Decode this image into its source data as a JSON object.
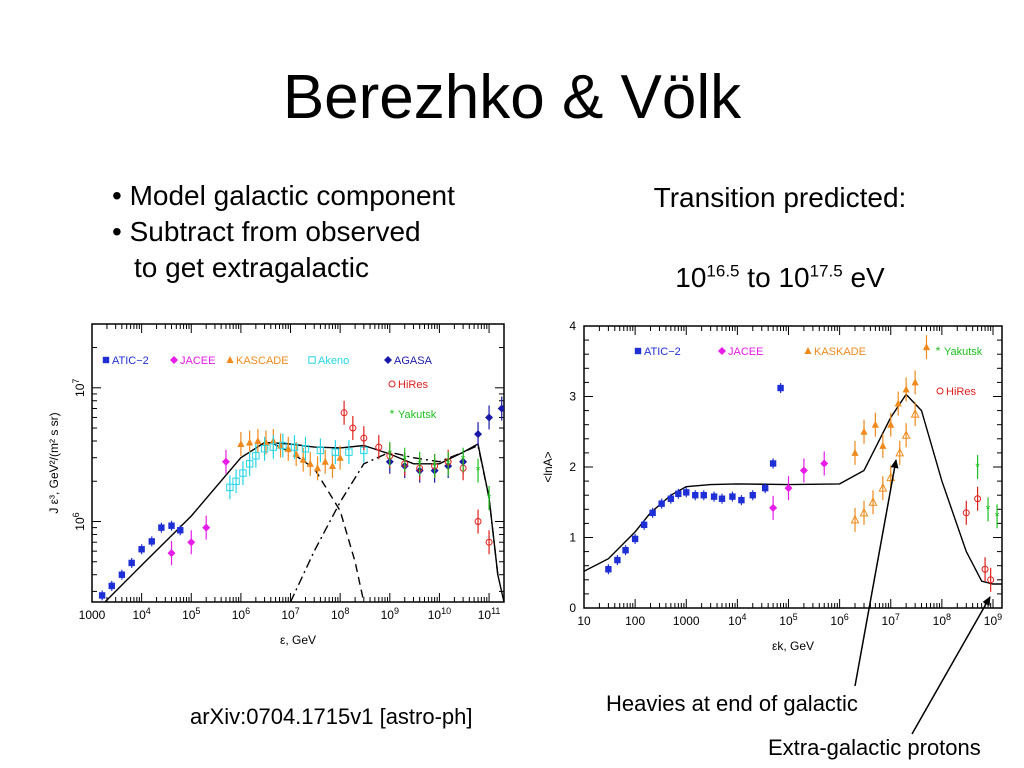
{
  "slide": {
    "title": "Berezhko & Völk",
    "bullets": [
      "• Model galactic component",
      "• Subtract from observed",
      "to get extragalactic"
    ],
    "transition_label": "Transition predicted:",
    "range": {
      "base1": "10",
      "exp1": "16.5",
      "mid": " to ",
      "base2": "10",
      "exp2": "17.5",
      "unit": " eV"
    },
    "citation": "arXiv:0704.1715v1 [astro-ph]",
    "annotation_heavies": "Heavies at end of galactic",
    "annotation_protons": "Extra-galactic protons"
  },
  "colors": {
    "ATIC-2": "#1f2fd6",
    "JACEE": "#e81ce8",
    "KASCADE": "#f08a1c",
    "Akeno": "#25d5e8",
    "AGASA": "#1a1aa8",
    "HiRes": "#e0201c",
    "Yakutsk": "#20c020",
    "model": "#000000"
  },
  "chart_data": [
    {
      "type": "scatter",
      "xlabel": "ε, GeV",
      "ylabel": "J ε³, GeV²/(m² s sr)",
      "x_scale": "log",
      "y_scale": "log",
      "xlim": [
        1000,
        200000000000
      ],
      "ylim": [
        250000,
        30000000
      ],
      "x_ticks": [
        {
          "v": 1000,
          "l": "1000"
        },
        {
          "v": 10000.0,
          "b": "10",
          "e": "4"
        },
        {
          "v": 100000.0,
          "b": "10",
          "e": "5"
        },
        {
          "v": 1000000.0,
          "b": "10",
          "e": "6"
        },
        {
          "v": 10000000.0,
          "b": "10",
          "e": "7"
        },
        {
          "v": 100000000.0,
          "b": "10",
          "e": "8"
        },
        {
          "v": 1000000000.0,
          "b": "10",
          "e": "9"
        },
        {
          "v": 10000000000.0,
          "b": "10",
          "e": "10"
        },
        {
          "v": 100000000000.0,
          "b": "10",
          "e": "11"
        }
      ],
      "y_ticks": [
        {
          "v": 1000000.0,
          "b": "10",
          "e": "6"
        },
        {
          "v": 10000000.0,
          "b": "10",
          "e": "7"
        }
      ],
      "legend": [
        "ATIC-2",
        "JACEE",
        "KASCADE",
        "Akeno",
        "AGASA",
        "HiRes",
        "Yakutsk"
      ],
      "legend_labels": {
        "ATIC-2": "ATIC−2",
        "JACEE": "JACEE",
        "KASCADE": "KASCADE",
        "Akeno": "Akeno",
        "AGASA": "AGASA",
        "HiRes": "HiRes",
        "Yakutsk": "Yakutsk"
      },
      "series": [
        {
          "name": "ATIC-2",
          "marker": "square",
          "values": [
            [
              1600,
              280000
            ],
            [
              2500,
              330000
            ],
            [
              4000,
              400000
            ],
            [
              6300,
              490000
            ],
            [
              10000,
              620000
            ],
            [
              16000,
              710000
            ],
            [
              25000,
              900000
            ],
            [
              40000,
              930000
            ],
            [
              60000,
              860000
            ]
          ]
        },
        {
          "name": "JACEE",
          "marker": "diamond",
          "values": [
            [
              40000,
              580000
            ],
            [
              100000,
              700000
            ],
            [
              200000,
              900000
            ],
            [
              500000,
              2800000
            ]
          ]
        },
        {
          "name": "KASCADE",
          "marker": "triangle",
          "values": [
            [
              1000000,
              3800000
            ],
            [
              1500000,
              3900000
            ],
            [
              2200000,
              4000000
            ],
            [
              3200000,
              3900000
            ],
            [
              4500000,
              4000000
            ],
            [
              6300000,
              3700000
            ],
            [
              9000000,
              3500000
            ],
            [
              13000000,
              3200000
            ],
            [
              18000000,
              2900000
            ],
            [
              25000000,
              2700000
            ],
            [
              35000000,
              2500000
            ],
            [
              50000000,
              2800000
            ],
            [
              70000000,
              2600000
            ],
            [
              100000000,
              3000000
            ]
          ]
        },
        {
          "name": "Akeno",
          "marker": "open-square",
          "values": [
            [
              600000,
              1800000
            ],
            [
              800000,
              2000000
            ],
            [
              1100000,
              2300000
            ],
            [
              1500000,
              2700000
            ],
            [
              2000000,
              3100000
            ],
            [
              3000000,
              3500000
            ],
            [
              4500000,
              3600000
            ],
            [
              7000000,
              3700000
            ],
            [
              12000000,
              3600000
            ],
            [
              20000000,
              3500000
            ],
            [
              40000000,
              3400000
            ],
            [
              80000000,
              3300000
            ],
            [
              150000000,
              3300000
            ],
            [
              300000000,
              3400000
            ]
          ]
        },
        {
          "name": "AGASA",
          "marker": "diamond",
          "values": [
            [
              1000000000,
              2800000
            ],
            [
              2000000000,
              2600000
            ],
            [
              4000000000,
              2400000
            ],
            [
              8000000000,
              2400000
            ],
            [
              15000000000,
              2600000
            ],
            [
              30000000000,
              2800000
            ],
            [
              60000000000,
              4500000
            ],
            [
              100000000000,
              6000000
            ],
            [
              180000000000,
              7000000
            ]
          ]
        },
        {
          "name": "HiRes",
          "marker": "circle",
          "values": [
            [
              120000000,
              6500000
            ],
            [
              180000000,
              5000000
            ],
            [
              300000000,
              4200000
            ],
            [
              600000000,
              3600000
            ],
            [
              1000000000,
              3100000
            ],
            [
              2000000000,
              2700000
            ],
            [
              4000000000,
              2500000
            ],
            [
              8000000000,
              2600000
            ],
            [
              15000000000,
              2800000
            ],
            [
              30000000000,
              2500000
            ],
            [
              60000000000,
              1000000
            ],
            [
              100000000000,
              700000
            ]
          ]
        },
        {
          "name": "Yakutsk",
          "marker": "star",
          "values": [
            [
              1000000000,
              3200000
            ],
            [
              2000000000,
              2900000
            ],
            [
              4000000000,
              2700000
            ],
            [
              8000000000,
              2600000
            ],
            [
              15000000000,
              2700000
            ],
            [
              30000000000,
              2900000
            ],
            [
              60000000000,
              2400000
            ],
            [
              100000000000,
              1500000
            ]
          ]
        }
      ],
      "curves": [
        {
          "name": "total",
          "style": "solid",
          "values": [
            [
              1000,
              200000
            ],
            [
              10000,
              470000
            ],
            [
              100000,
              1100000
            ],
            [
              1000000,
              3000000
            ],
            [
              3000000,
              3900000
            ],
            [
              10000000,
              3800000
            ],
            [
              30000000,
              3600000
            ],
            [
              100000000,
              3550000
            ],
            [
              300000000,
              3700000
            ],
            [
              1000000000,
              3200000
            ],
            [
              3000000000,
              2700000
            ],
            [
              10000000000,
              2700000
            ],
            [
              30000000000,
              3300000
            ],
            [
              60000000000,
              3800000
            ],
            [
              100000000000,
              1500000
            ],
            [
              150000000000,
              400000
            ],
            [
              200000000000,
              250000
            ]
          ]
        },
        {
          "name": "galactic",
          "style": "dash",
          "values": [
            [
              4000000,
              3900000
            ],
            [
              10000000,
              3300000
            ],
            [
              30000000,
              2500000
            ],
            [
              100000000,
              1200000
            ],
            [
              200000000,
              500000
            ],
            [
              300000000,
              250000
            ]
          ]
        },
        {
          "name": "extragalactic",
          "style": "dashdot",
          "values": [
            [
              10000000,
              250000
            ],
            [
              30000000,
              600000
            ],
            [
              100000000,
              1400000
            ],
            [
              300000000,
              2700000
            ],
            [
              1000000000,
              3300000
            ],
            [
              3000000000,
              3000000
            ],
            [
              10000000000,
              2800000
            ],
            [
              30000000000,
              3300000
            ],
            [
              60000000000,
              3700000
            ],
            [
              100000000000,
              1500000
            ],
            [
              150000000000,
              400000
            ]
          ]
        }
      ]
    },
    {
      "type": "scatter",
      "xlabel": "εk, GeV",
      "ylabel": "<lnA>",
      "x_scale": "log",
      "y_scale": "linear",
      "xlim": [
        10,
        1500000000
      ],
      "ylim": [
        0,
        4
      ],
      "x_ticks": [
        {
          "v": 10,
          "l": "10"
        },
        {
          "v": 100,
          "l": "100"
        },
        {
          "v": 1000,
          "l": "1000"
        },
        {
          "v": 10000.0,
          "b": "10",
          "e": "4"
        },
        {
          "v": 100000.0,
          "b": "10",
          "e": "5"
        },
        {
          "v": 1000000.0,
          "b": "10",
          "e": "6"
        },
        {
          "v": 10000000.0,
          "b": "10",
          "e": "7"
        },
        {
          "v": 100000000.0,
          "b": "10",
          "e": "8"
        },
        {
          "v": 1000000000.0,
          "b": "10",
          "e": "9"
        }
      ],
      "y_ticks": [
        {
          "v": 0,
          "l": "0"
        },
        {
          "v": 1,
          "l": "1"
        },
        {
          "v": 2,
          "l": "2"
        },
        {
          "v": 3,
          "l": "3"
        },
        {
          "v": 4,
          "l": "4"
        }
      ],
      "legend": [
        "ATIC-2",
        "JACEE",
        "KASKADE",
        "Yakutsk",
        "HiRes"
      ],
      "legend_labels": {
        "ATIC-2": "ATIC−2",
        "JACEE": "JACEE",
        "KASKADE": "KASKADE",
        "Yakutsk": "Yakutsk",
        "HiRes": "HiRes"
      },
      "series": [
        {
          "name": "ATIC-2",
          "marker": "square",
          "values": [
            [
              30,
              0.55
            ],
            [
              45,
              0.68
            ],
            [
              65,
              0.82
            ],
            [
              100,
              0.98
            ],
            [
              150,
              1.18
            ],
            [
              220,
              1.35
            ],
            [
              330,
              1.48
            ],
            [
              500,
              1.55
            ],
            [
              700,
              1.62
            ],
            [
              1000,
              1.64
            ],
            [
              1500,
              1.6
            ],
            [
              2200,
              1.6
            ],
            [
              3500,
              1.58
            ],
            [
              5000,
              1.55
            ],
            [
              8000,
              1.58
            ],
            [
              12000,
              1.53
            ],
            [
              20000,
              1.6
            ],
            [
              35000,
              1.7
            ],
            [
              50000,
              2.05
            ],
            [
              70000,
              3.12
            ]
          ]
        },
        {
          "name": "JACEE",
          "marker": "diamond",
          "values": [
            [
              50000,
              1.42
            ],
            [
              100000,
              1.7
            ],
            [
              200000,
              1.95
            ],
            [
              500000,
              2.05
            ]
          ]
        },
        {
          "name": "KASKADE",
          "marker": "triangle",
          "values": [
            [
              2000000,
              2.2
            ],
            [
              3000000,
              2.5
            ],
            [
              5000000,
              2.6
            ],
            [
              7000000,
              2.3
            ],
            [
              10000000,
              2.6
            ],
            [
              14000000,
              2.9
            ],
            [
              20000000,
              3.1
            ],
            [
              30000000,
              3.2
            ],
            [
              50000000,
              3.7
            ]
          ]
        },
        {
          "name": "KASKADE-open",
          "marker": "open-triangle",
          "values": [
            [
              2000000,
              1.25
            ],
            [
              3000000,
              1.35
            ],
            [
              4500000,
              1.5
            ],
            [
              7000000,
              1.7
            ],
            [
              10000000,
              1.85
            ],
            [
              15000000,
              2.2
            ],
            [
              20000000,
              2.45
            ],
            [
              30000000,
              2.75
            ]
          ]
        },
        {
          "name": "Yakutsk",
          "marker": "star",
          "values": [
            [
              500000000,
              2.0
            ],
            [
              800000000,
              1.4
            ],
            [
              1200000000,
              1.3
            ]
          ]
        },
        {
          "name": "HiRes",
          "marker": "circle",
          "values": [
            [
              300000000,
              1.35
            ],
            [
              500000000,
              1.55
            ],
            [
              700000000,
              0.55
            ],
            [
              900000000,
              0.4
            ]
          ]
        }
      ],
      "curves": [
        {
          "name": "model",
          "style": "solid",
          "values": [
            [
              10,
              0.52
            ],
            [
              30,
              0.7
            ],
            [
              100,
              1.08
            ],
            [
              200,
              1.35
            ],
            [
              500,
              1.6
            ],
            [
              1000,
              1.72
            ],
            [
              3000,
              1.75
            ],
            [
              10000,
              1.76
            ],
            [
              100000,
              1.75
            ],
            [
              1000000,
              1.76
            ],
            [
              3000000,
              1.95
            ],
            [
              10000000,
              2.7
            ],
            [
              20000000,
              3.03
            ],
            [
              40000000,
              2.8
            ],
            [
              100000000,
              1.8
            ],
            [
              300000000,
              0.8
            ],
            [
              600000000,
              0.38
            ],
            [
              1000000000,
              0.34
            ],
            [
              1500000000,
              0.34
            ]
          ]
        }
      ]
    }
  ]
}
